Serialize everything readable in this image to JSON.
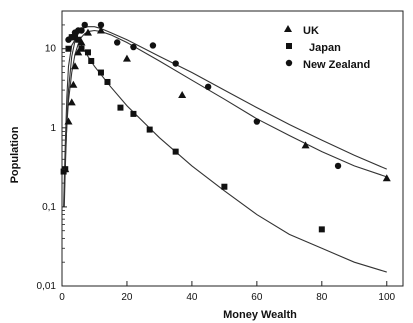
{
  "chart_data": {
    "type": "scatter",
    "title": "",
    "xlabel": "Money Wealth",
    "ylabel": "Population",
    "xlim": [
      0,
      105
    ],
    "ylim": [
      0.01,
      30
    ],
    "yscale": "log",
    "x_ticks": [
      0,
      20,
      40,
      60,
      80,
      100
    ],
    "x_tick_labels": [
      "0",
      "20",
      "40",
      "60",
      "80",
      "100"
    ],
    "y_ticks": [
      0.01,
      0.1,
      1,
      10
    ],
    "y_tick_labels": [
      "0,01",
      "0,1",
      "1",
      "10"
    ],
    "grid": false,
    "legend_position": "top-right",
    "series": [
      {
        "name": "UK",
        "marker": "triangle",
        "points": [
          [
            1,
            0.3
          ],
          [
            2,
            1.2
          ],
          [
            3,
            2.1
          ],
          [
            3.5,
            3.5
          ],
          [
            4,
            6
          ],
          [
            5,
            9
          ],
          [
            6,
            12
          ],
          [
            8,
            16
          ],
          [
            12,
            17
          ],
          [
            20,
            7.5
          ],
          [
            37,
            2.6
          ],
          [
            75,
            0.6
          ],
          [
            100,
            0.23
          ]
        ],
        "curve": [
          [
            0.6,
            0.1
          ],
          [
            1,
            0.4
          ],
          [
            1.5,
            1.1
          ],
          [
            2,
            2.2
          ],
          [
            3,
            5
          ],
          [
            4,
            8.5
          ],
          [
            5,
            11.5
          ],
          [
            6,
            14
          ],
          [
            7,
            15.5
          ],
          [
            8,
            16.5
          ],
          [
            10,
            17
          ],
          [
            12,
            16.5
          ],
          [
            15,
            15
          ],
          [
            20,
            12
          ],
          [
            30,
            7
          ],
          [
            40,
            4
          ],
          [
            50,
            2.3
          ],
          [
            60,
            1.3
          ],
          [
            70,
            0.8
          ],
          [
            80,
            0.5
          ],
          [
            90,
            0.33
          ],
          [
            100,
            0.24
          ]
        ]
      },
      {
        "name": "Japan",
        "marker": "square",
        "points": [
          [
            0.5,
            0.28
          ],
          [
            1,
            0.3
          ],
          [
            2,
            10
          ],
          [
            3,
            14
          ],
          [
            4,
            14
          ],
          [
            5,
            13
          ],
          [
            6,
            10
          ],
          [
            8,
            9
          ],
          [
            9,
            7
          ],
          [
            12,
            5
          ],
          [
            14,
            3.8
          ],
          [
            18,
            1.8
          ],
          [
            22,
            1.5
          ],
          [
            27,
            0.95
          ],
          [
            35,
            0.5
          ],
          [
            50,
            0.18
          ],
          [
            80,
            0.052
          ]
        ],
        "curve": [
          [
            0.5,
            0.1
          ],
          [
            1,
            0.6
          ],
          [
            1.5,
            2.5
          ],
          [
            2,
            6
          ],
          [
            3,
            11
          ],
          [
            4,
            13
          ],
          [
            5,
            12.5
          ],
          [
            6,
            11
          ],
          [
            8,
            8
          ],
          [
            10,
            6
          ],
          [
            15,
            3.3
          ],
          [
            20,
            1.9
          ],
          [
            30,
            0.75
          ],
          [
            40,
            0.33
          ],
          [
            50,
            0.16
          ],
          [
            60,
            0.08
          ],
          [
            70,
            0.045
          ],
          [
            80,
            0.03
          ],
          [
            90,
            0.02
          ],
          [
            100,
            0.015
          ]
        ]
      },
      {
        "name": "New Zealand",
        "marker": "circle",
        "points": [
          [
            2,
            13
          ],
          [
            3,
            14
          ],
          [
            4,
            16
          ],
          [
            5,
            17
          ],
          [
            6,
            17
          ],
          [
            7,
            20
          ],
          [
            12,
            20
          ],
          [
            17,
            12
          ],
          [
            22,
            10.5
          ],
          [
            28,
            11
          ],
          [
            35,
            6.5
          ],
          [
            45,
            3.3
          ],
          [
            60,
            1.2
          ],
          [
            85,
            0.33
          ]
        ],
        "curve": [
          [
            0.7,
            0.1
          ],
          [
            1,
            0.3
          ],
          [
            1.5,
            1.2
          ],
          [
            2,
            3
          ],
          [
            3,
            8
          ],
          [
            4,
            12.5
          ],
          [
            5,
            15.5
          ],
          [
            6,
            17.5
          ],
          [
            7,
            18.5
          ],
          [
            8,
            19
          ],
          [
            10,
            19
          ],
          [
            12,
            18
          ],
          [
            15,
            16
          ],
          [
            20,
            13
          ],
          [
            30,
            8
          ],
          [
            40,
            5
          ],
          [
            50,
            3
          ],
          [
            60,
            1.8
          ],
          [
            70,
            1.1
          ],
          [
            80,
            0.7
          ],
          [
            90,
            0.45
          ],
          [
            100,
            0.3
          ]
        ]
      }
    ]
  }
}
